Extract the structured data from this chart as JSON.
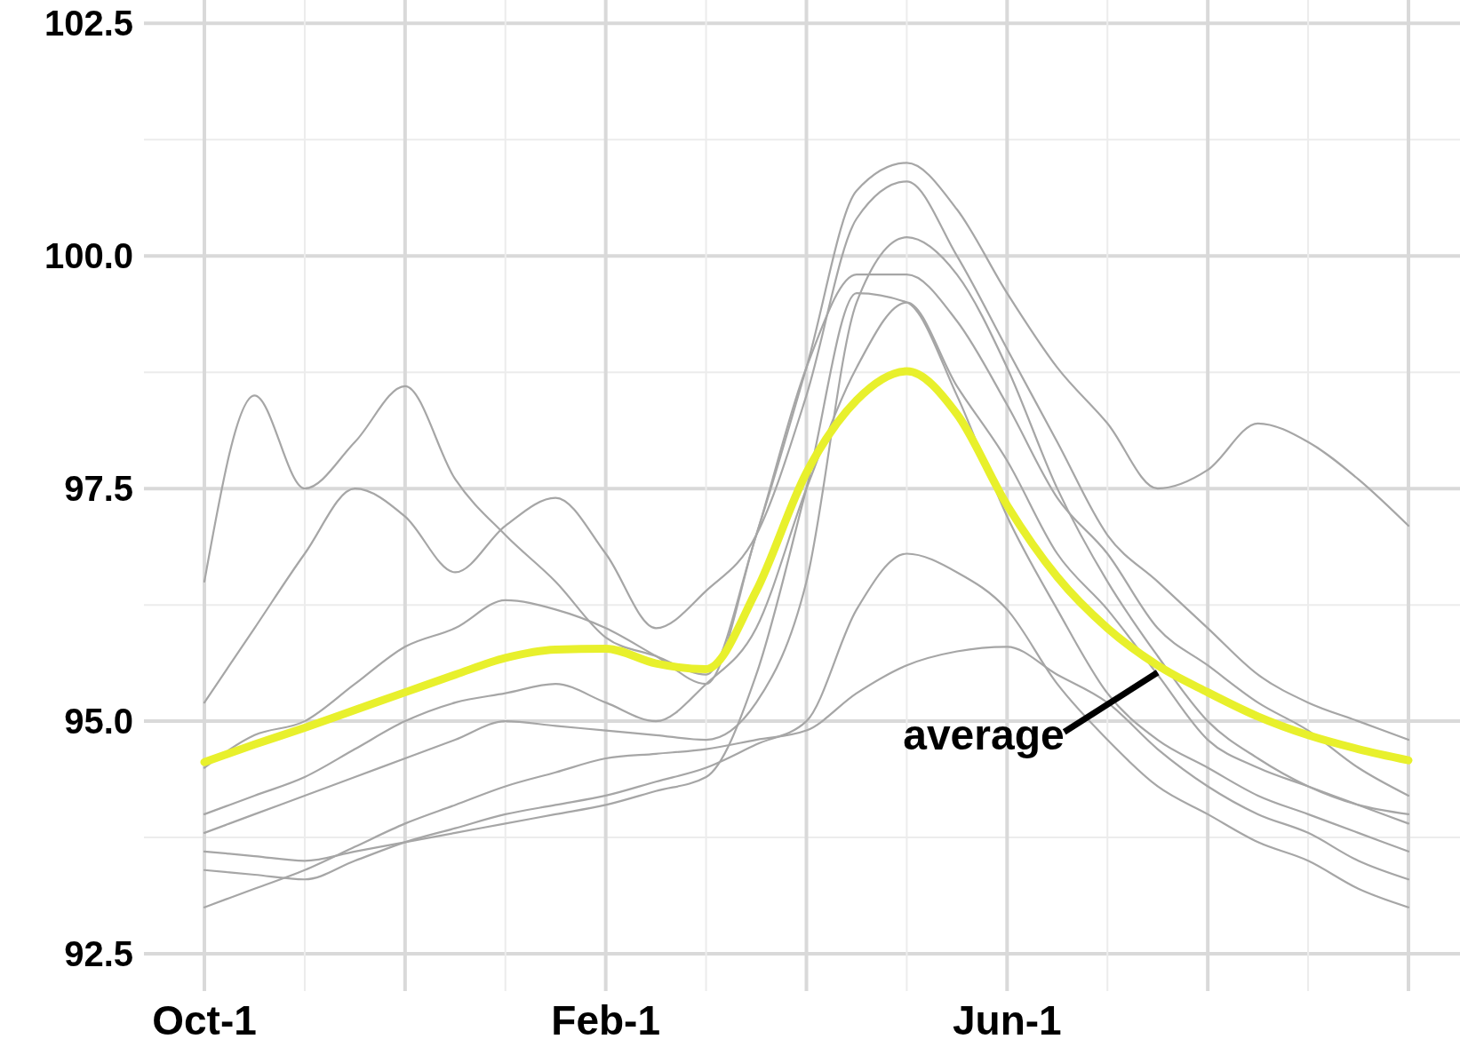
{
  "chart_data": {
    "type": "line",
    "ylim": [
      92.1,
      102.75
    ],
    "categories": [
      "Oct-1",
      null,
      null,
      null,
      null,
      null,
      null,
      null,
      "Feb-1",
      null,
      null,
      null,
      null,
      null,
      null,
      null,
      "Jun-1",
      null,
      null,
      null,
      null,
      null,
      null,
      null,
      null
    ],
    "yticks": [
      {
        "value": 92.5,
        "label": "92.5"
      },
      {
        "value": 93.75,
        "label": null
      },
      {
        "value": 95,
        "label": "95.0"
      },
      {
        "value": 96.25,
        "label": null
      },
      {
        "value": 97.5,
        "label": "97.5"
      },
      {
        "value": 98.75,
        "label": null
      },
      {
        "value": 100,
        "label": "100.0"
      },
      {
        "value": 101.25,
        "label": null
      },
      {
        "value": 102.5,
        "label": "102.5"
      }
    ],
    "grid": true,
    "marker": "none",
    "line_style": "solid",
    "series": [
      {
        "color": "#a6a6a6",
        "values": [
          93.6,
          93.55,
          93.5,
          93.6,
          93.7,
          93.8,
          93.9,
          94.0,
          94.1,
          94.25,
          94.4,
          95.5,
          97.5,
          99.6,
          99.5,
          98.5,
          97.2,
          96.2,
          95.3,
          94.8,
          94.5,
          94.2,
          94.0,
          93.8,
          93.6
        ]
      },
      {
        "color": "#a6a6a6",
        "values": [
          95.2,
          96.0,
          96.8,
          97.5,
          97.2,
          96.6,
          97.1,
          97.4,
          96.8,
          96.0,
          96.4,
          97.0,
          98.5,
          100.4,
          100.8,
          100.0,
          99.0,
          98.0,
          97.0,
          96.5,
          96.0,
          95.5,
          95.2,
          95.0,
          94.8
        ]
      },
      {
        "color": "#a6a6a6",
        "values": [
          94.0,
          94.2,
          94.4,
          94.7,
          95.0,
          95.2,
          95.3,
          95.4,
          95.2,
          95.0,
          95.4,
          96.0,
          97.5,
          98.8,
          99.5,
          98.6,
          97.8,
          96.8,
          96.2,
          95.5,
          94.8,
          94.5,
          94.3,
          94.1,
          93.9
        ]
      },
      {
        "color": "#a6a6a6",
        "values": [
          93.4,
          93.35,
          93.3,
          93.5,
          93.7,
          93.85,
          94.0,
          94.1,
          94.2,
          94.35,
          94.5,
          94.75,
          95.0,
          96.2,
          96.8,
          96.6,
          96.2,
          95.4,
          94.8,
          94.3,
          94.0,
          93.7,
          93.5,
          93.2,
          93.0
        ]
      },
      {
        "color": "#a6a6a6",
        "values": [
          96.5,
          98.5,
          97.5,
          98.0,
          98.6,
          97.6,
          97.0,
          96.5,
          95.9,
          95.7,
          95.5,
          97.0,
          98.8,
          100.7,
          101.0,
          100.5,
          99.6,
          98.8,
          98.2,
          97.5,
          97.7,
          98.2,
          98.0,
          97.6,
          97.1
        ]
      },
      {
        "color": "#a6a6a6",
        "values": [
          94.5,
          94.85,
          95.0,
          95.4,
          95.8,
          96.0,
          96.3,
          96.2,
          96.0,
          95.7,
          95.4,
          97.0,
          98.8,
          99.8,
          99.8,
          99.3,
          98.4,
          97.4,
          96.8,
          96.0,
          95.6,
          95.2,
          94.9,
          94.5,
          94.2
        ]
      },
      {
        "color": "#a6a6a6",
        "values": [
          93.8,
          94.0,
          94.2,
          94.4,
          94.6,
          94.8,
          95.0,
          94.95,
          94.9,
          94.85,
          94.8,
          95.2,
          96.5,
          99.5,
          100.2,
          99.8,
          98.8,
          97.5,
          96.5,
          95.7,
          95.0,
          94.6,
          94.3,
          94.1,
          94.0
        ]
      },
      {
        "color": "#a6a6a6",
        "values": [
          93.0,
          93.2,
          93.4,
          93.65,
          93.9,
          94.1,
          94.3,
          94.45,
          94.6,
          94.65,
          94.7,
          94.8,
          94.9,
          95.3,
          95.6,
          95.75,
          95.8,
          95.5,
          95.2,
          94.7,
          94.3,
          94.0,
          93.8,
          93.5,
          93.3
        ]
      },
      {
        "color": "#e8f02c",
        "values": [
          94.56,
          94.75,
          94.93,
          95.12,
          95.31,
          95.5,
          95.68,
          95.77,
          95.78,
          95.62,
          95.56,
          96.4,
          97.67,
          98.45,
          98.76,
          98.3,
          97.32,
          96.55,
          96.0,
          95.6,
          95.31,
          95.05,
          94.85,
          94.7,
          94.58
        ]
      }
    ],
    "annotations": [
      "average"
    ]
  }
}
